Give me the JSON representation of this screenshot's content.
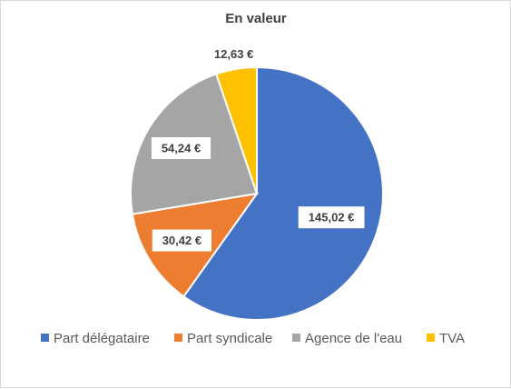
{
  "chart_data": {
    "type": "pie",
    "title": "En valeur",
    "categories": [
      "Part délégataire",
      "Part syndicale",
      "Agence de l'eau",
      "TVA"
    ],
    "values": [
      145.02,
      30.42,
      54.24,
      12.63
    ],
    "value_labels": [
      "145,02 €",
      "30,42 €",
      "54,24 €",
      "12,63 €"
    ],
    "colors": [
      "#4472C4",
      "#ED7D31",
      "#A5A5A5",
      "#FFC000"
    ],
    "legend_position": "bottom",
    "start_angle": "12 o'clock, clockwise"
  }
}
